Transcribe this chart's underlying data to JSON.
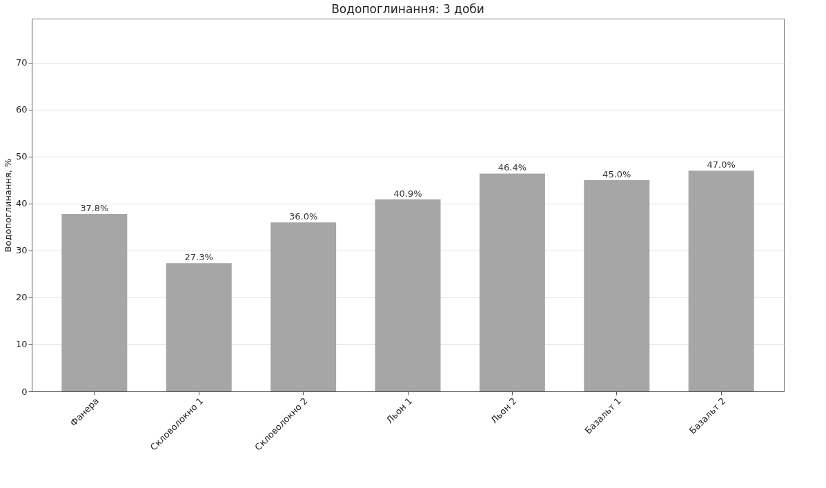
{
  "chart_data": {
    "type": "bar",
    "title": "Водопоглинання: 3 доби",
    "ylabel": "Водопоглинання, %",
    "categories": [
      "Фанера",
      "Скловолокно 1",
      "Скловолокно 2",
      "Льон 1",
      "Льон 2",
      "Базальт 1",
      "Базальт 2"
    ],
    "values": [
      37.8,
      27.3,
      36.0,
      40.9,
      46.4,
      45.0,
      47.0
    ],
    "value_labels": [
      "37.8%",
      "27.3%",
      "36.0%",
      "40.9%",
      "46.4%",
      "45.0%",
      "47.0%"
    ],
    "color": "#a6a6a6",
    "ylim": [
      0,
      79.4
    ],
    "yticks": [
      0,
      10,
      20,
      30,
      40,
      50,
      60,
      70
    ],
    "grid": "y"
  }
}
